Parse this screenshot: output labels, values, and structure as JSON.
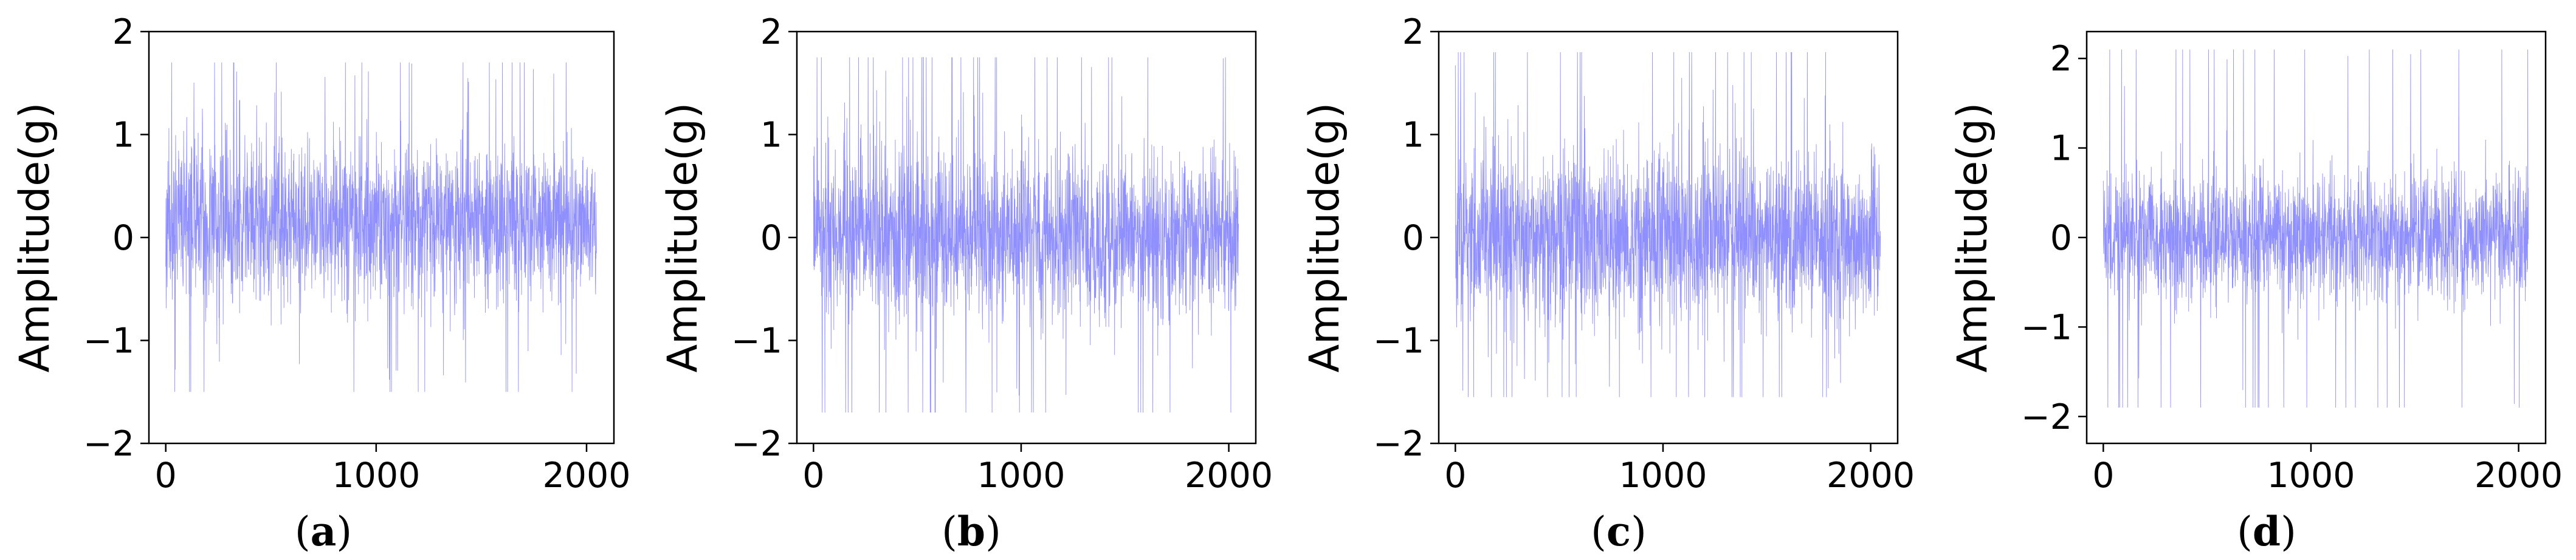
{
  "chart_data": [
    {
      "type": "line",
      "panel": "a",
      "caption": "(a)",
      "ylabel": "Amplitude(g)",
      "xlim": [
        -80,
        2130
      ],
      "ylim": [
        -2,
        2
      ],
      "xticks": [
        "0",
        "1000",
        "2000"
      ],
      "xtick_values": [
        0,
        1000,
        2000
      ],
      "yticks": [
        "−2",
        "−1",
        "0",
        "1",
        "2"
      ],
      "ytick_values": [
        -2,
        -1,
        0,
        1,
        2
      ],
      "n_points": 2048,
      "signal": {
        "mean": 0.15,
        "std": 0.38,
        "min": -1.5,
        "max": 1.7,
        "seed": 11
      },
      "series_color": "#3333ff"
    },
    {
      "type": "line",
      "panel": "b",
      "caption": "(b)",
      "ylabel": "Amplitude(g)",
      "xlim": [
        -80,
        2130
      ],
      "ylim": [
        -2,
        2
      ],
      "xticks": [
        "0",
        "1000",
        "2000"
      ],
      "xtick_values": [
        0,
        1000,
        2000
      ],
      "yticks": [
        "−2",
        "−1",
        "0",
        "1",
        "2"
      ],
      "ytick_values": [
        -2,
        -1,
        0,
        1,
        2
      ],
      "n_points": 2048,
      "signal": {
        "mean": 0.0,
        "std": 0.4,
        "min": -1.7,
        "max": 1.75,
        "seed": 23
      },
      "series_color": "#3333ff"
    },
    {
      "type": "line",
      "panel": "c",
      "caption": "(c)",
      "ylabel": "Amplitude(g)",
      "xlim": [
        -80,
        2130
      ],
      "ylim": [
        -2,
        2
      ],
      "xticks": [
        "0",
        "1000",
        "2000"
      ],
      "xtick_values": [
        0,
        1000,
        2000
      ],
      "yticks": [
        "−2",
        "−1",
        "0",
        "1",
        "2"
      ],
      "ytick_values": [
        -2,
        -1,
        0,
        1,
        2
      ],
      "n_points": 2048,
      "signal": {
        "mean": 0.0,
        "std": 0.42,
        "min": -1.55,
        "max": 1.8,
        "seed": 37
      },
      "series_color": "#3333ff"
    },
    {
      "type": "line",
      "panel": "d",
      "caption": "(d)",
      "ylabel": "Amplitude(g)",
      "xlim": [
        -80,
        2130
      ],
      "ylim": [
        -2.3,
        2.3
      ],
      "xticks": [
        "0",
        "1000",
        "2000"
      ],
      "xtick_values": [
        0,
        1000,
        2000
      ],
      "yticks": [
        "−2",
        "−1",
        "0",
        "1",
        "2"
      ],
      "ytick_values": [
        -2,
        -1,
        0,
        1,
        2
      ],
      "n_points": 2048,
      "signal": {
        "mean": 0.0,
        "std": 0.36,
        "min": -1.9,
        "max": 2.1,
        "seed": 51
      },
      "series_color": "#3333ff"
    }
  ]
}
